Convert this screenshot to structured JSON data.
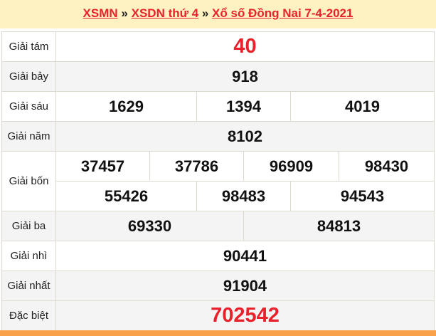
{
  "breadcrumb": {
    "items": [
      "XSMN",
      "XSDN thứ 4",
      "Xổ số Đồng Nai 7-4-2021"
    ],
    "separator": "»"
  },
  "colors": {
    "accent": "#e8212b",
    "header_bg": "#fff2c2",
    "bottom_bar": "#f9a04a"
  },
  "results": [
    {
      "label": "Giải tám",
      "rows": [
        [
          "40"
        ]
      ],
      "highlight": true
    },
    {
      "label": "Giải bảy",
      "rows": [
        [
          "918"
        ]
      ]
    },
    {
      "label": "Giải sáu",
      "rows": [
        [
          "1629",
          "1394",
          "4019"
        ]
      ]
    },
    {
      "label": "Giải năm",
      "rows": [
        [
          "8102"
        ]
      ]
    },
    {
      "label": "Giải bốn",
      "rows": [
        [
          "37457",
          "37786",
          "96909",
          "98430"
        ],
        [
          "55426",
          "98483",
          "94543"
        ]
      ]
    },
    {
      "label": "Giải ba",
      "rows": [
        [
          "69330",
          "84813"
        ]
      ]
    },
    {
      "label": "Giải nhì",
      "rows": [
        [
          "90441"
        ]
      ]
    },
    {
      "label": "Giải nhất",
      "rows": [
        [
          "91904"
        ]
      ]
    },
    {
      "label": "Đặc biệt",
      "rows": [
        [
          "702542"
        ]
      ],
      "highlight": true
    }
  ]
}
